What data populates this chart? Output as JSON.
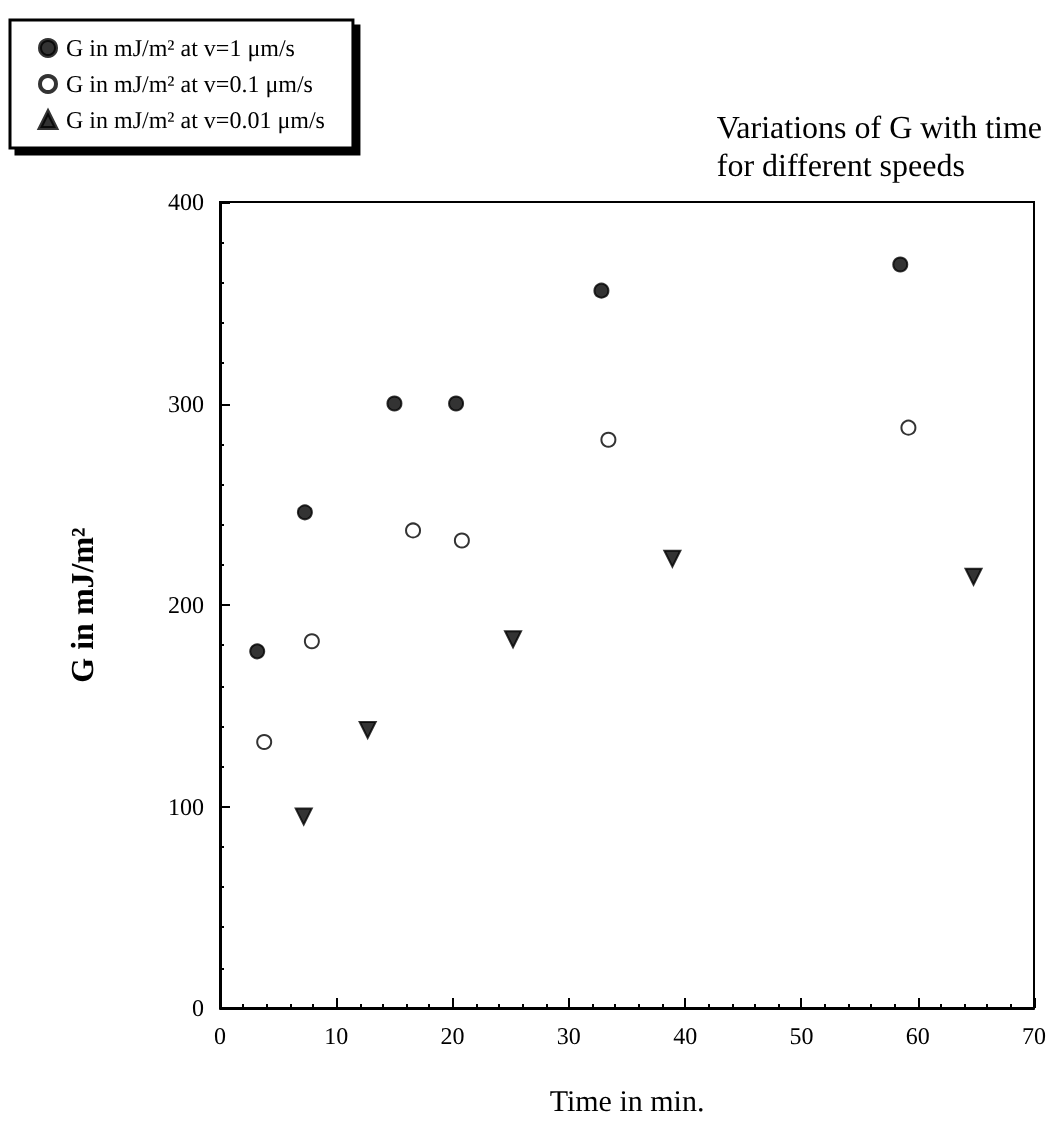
{
  "chart_data": {
    "type": "scatter",
    "title": "Variations of G with time\nfor different speeds",
    "xlabel": "Time in min.",
    "ylabel": "G in mJ/m²",
    "series": [
      {
        "name": "G in mJ/m² at v=1 μm/s",
        "color": "#000000",
        "marker": "circle",
        "x": [
          3.2,
          7.3,
          15.0,
          20.3,
          32.8,
          58.5
        ],
        "values": [
          177,
          246,
          300,
          300,
          356,
          369
        ]
      },
      {
        "name": "G in mJ/m² at v=0.1 μm/s",
        "color": "#ffffff",
        "marker": "circle",
        "x": [
          3.8,
          7.9,
          16.6,
          20.8,
          33.4,
          59.2
        ],
        "values": [
          132,
          182,
          237,
          232,
          282,
          288
        ]
      },
      {
        "name": "G in mJ/m² at v=0.01 μm/s",
        "color": "#000000",
        "marker": "triangle",
        "x": [
          7.2,
          12.7,
          25.2,
          38.9,
          64.8
        ],
        "values": [
          95,
          138,
          183,
          223,
          214
        ]
      }
    ],
    "xlim": [
      0,
      70
    ],
    "xticks": [
      0,
      10,
      20,
      30,
      40,
      50,
      60,
      70
    ],
    "ylim": [
      0,
      400
    ],
    "yticks": [
      0,
      100,
      200,
      300,
      400
    ],
    "grid": false,
    "legend": "top left"
  }
}
